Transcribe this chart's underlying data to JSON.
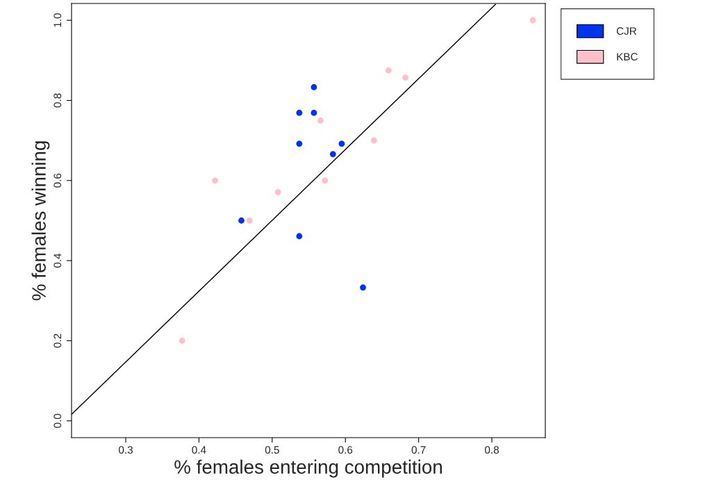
{
  "chart_data": {
    "type": "scatter",
    "xlabel": "% females entering competition",
    "ylabel": "% females winning",
    "xlim": [
      0.226,
      0.873
    ],
    "ylim": [
      -0.042,
      1.042
    ],
    "xticks": [
      0.3,
      0.4,
      0.5,
      0.6,
      0.7,
      0.8
    ],
    "yticks": [
      {
        "value": 0,
        "label": "0.0"
      },
      0.2,
      0.4,
      0.6,
      0.8,
      {
        "value": 1,
        "label": "1.0"
      }
    ],
    "grid": false,
    "legend": "top right",
    "series": [
      {
        "name": "CJR",
        "color": "#0033ee",
        "marker": "circle",
        "x": [
          0.458,
          0.537,
          0.537,
          0.537,
          0.557,
          0.557,
          0.583,
          0.595,
          0.624
        ],
        "values": [
          0.5,
          0.769,
          0.692,
          0.461,
          0.833,
          0.769,
          0.666,
          0.692,
          0.333
        ]
      },
      {
        "name": "KBC",
        "color": "#ffc0cb",
        "marker": "circle",
        "x": [
          0.377,
          0.422,
          0.469,
          0.508,
          0.566,
          0.572,
          0.639,
          0.659,
          0.682,
          0.856
        ],
        "values": [
          0.2,
          0.6,
          0.5,
          0.571,
          0.75,
          0.6,
          0.7,
          0.875,
          0.857,
          1.0
        ]
      },
      {
        "type": "line",
        "color": "#000000",
        "line_style": "solid",
        "x": [
          0.226,
          0.805
        ],
        "values": [
          0.016,
          1.04
        ]
      }
    ]
  }
}
